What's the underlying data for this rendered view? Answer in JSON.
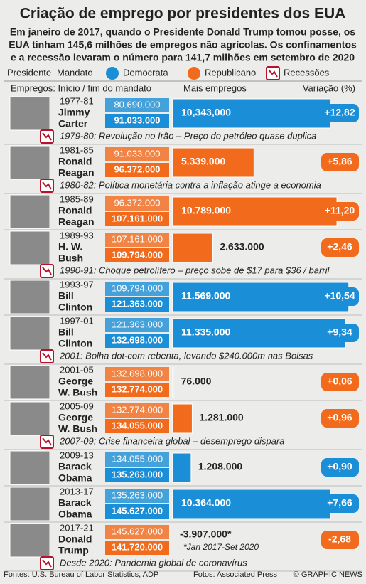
{
  "chart_data": {
    "type": "bar",
    "title": "Criação de emprego por presidentes dos EUA",
    "subtitle": [
      "Em janeiro de 2017, quando o Presidente Donald Trump tomou posse, os",
      "EUA tinham 145,6 milhões de empregos não agrícolas. Os confinamentos",
      "e a recessão levaram o número para 141,7 milhões em setembro de 2020"
    ],
    "legend_labels": {
      "president": "Presidente",
      "term": "Mandato",
      "recession": "Recessões"
    },
    "recession_color": "#b5122b",
    "headers": {
      "jobs": "Empregos: Início / fim do mandato",
      "more": "Mais empregos",
      "change": "Variação (%)"
    },
    "series": [
      {
        "name": "Democrata",
        "color": "#1a8ed6"
      },
      {
        "name": "Republicano",
        "color": "#f26a1b"
      }
    ],
    "xlim": [
      0,
      12000000
    ],
    "rows": [
      {
        "term": "1977-81",
        "name": [
          "Jimmy",
          "Carter"
        ],
        "party": "Democrata",
        "start": "80.690.000",
        "end": "91.033.000",
        "value": 10343000,
        "value_label": "10,343,000",
        "change": 12.82,
        "change_label": "+12,82",
        "note": "1979-80: Revolução no Irão – Preço do petróleo quase duplica"
      },
      {
        "term": "1981-85",
        "name": [
          "Ronald",
          "Reagan"
        ],
        "party": "Republicano",
        "start": "91.033.000",
        "end": "96.372.000",
        "value": 5339000,
        "value_label": "5.339.000",
        "change": 5.86,
        "change_label": "+5,86",
        "note": "1980-82: Política monetária contra a inflação atinge a economia"
      },
      {
        "term": "1985-89",
        "name": [
          "Ronald",
          "Reagan"
        ],
        "party": "Republicano",
        "start": "96.372.000",
        "end": "107.161.000",
        "value": 10789000,
        "value_label": "10.789.000",
        "change": 11.2,
        "change_label": "+11,20"
      },
      {
        "term": "1989-93",
        "name": [
          "H. W.",
          "Bush"
        ],
        "party": "Republicano",
        "start": "107.161.000",
        "end": "109.794.000",
        "value": 2633000,
        "value_label": "2.633.000",
        "change": 2.46,
        "change_label": "+2,46",
        "note": "1990-91: Choque petrolífero – preço sobe de $17 para $36 / barril"
      },
      {
        "term": "1993-97",
        "name": [
          "Bill",
          "Clinton"
        ],
        "party": "Democrata",
        "start": "109.794.000",
        "end": "121.363.000",
        "value": 11569000,
        "value_label": "11.569.000",
        "change": 10.54,
        "change_label": "+10,54"
      },
      {
        "term": "1997-01",
        "name": [
          "Bill",
          "Clinton"
        ],
        "party": "Democrata",
        "start": "121.363.000",
        "end": "132.698.000",
        "value": 11335000,
        "value_label": "11.335.000",
        "change": 9.34,
        "change_label": "+9,34",
        "note": "2001: Bolha dot-com rebenta, levando $240.000m nas Bolsas"
      },
      {
        "term": "2001-05",
        "name": [
          "George",
          "W. Bush"
        ],
        "party": "Republicano",
        "start": "132.698.000",
        "end": "132.774.000",
        "value": 76000,
        "value_label": "76.000",
        "change": 0.06,
        "change_label": "+0,06"
      },
      {
        "term": "2005-09",
        "name": [
          "George",
          "W. Bush"
        ],
        "party": "Republicano",
        "start": "132.774.000",
        "end": "134.055.000",
        "value": 1281000,
        "value_label": "1.281.000",
        "change": 0.96,
        "change_label": "+0,96",
        "note": "2007-09: Crise financeira global – desemprego dispara"
      },
      {
        "term": "2009-13",
        "name": [
          "Barack",
          "Obama"
        ],
        "party": "Democrata",
        "start": "134.055.000",
        "end": "135.263.000",
        "value": 1208000,
        "value_label": "1.208.000",
        "change": 0.9,
        "change_label": "+0,90"
      },
      {
        "term": "2013-17",
        "name": [
          "Barack",
          "Obama"
        ],
        "party": "Democrata",
        "start": "135.263.000",
        "end": "145.627.000",
        "value": 10364000,
        "value_label": "10.364.000",
        "change": 7.66,
        "change_label": "+7,66"
      },
      {
        "term": "2017-21",
        "name": [
          "Donald",
          "Trump"
        ],
        "party": "Republicano",
        "start": "145.627.000",
        "end": "141.720.000",
        "value": -3907000,
        "value_label": "-3.907.000*",
        "change": -2.68,
        "change_label": "-2,68",
        "footnote": "*Jan 2017-Set 2020",
        "note": "Desde 2020: Pandemia global de coronavírus"
      }
    ],
    "footer": {
      "sources": "Fontes: U.S. Bureau of Labor Statistics, ADP",
      "photos": "Fotos: Associated Press",
      "credit": "© GRAPHIC NEWS"
    }
  }
}
